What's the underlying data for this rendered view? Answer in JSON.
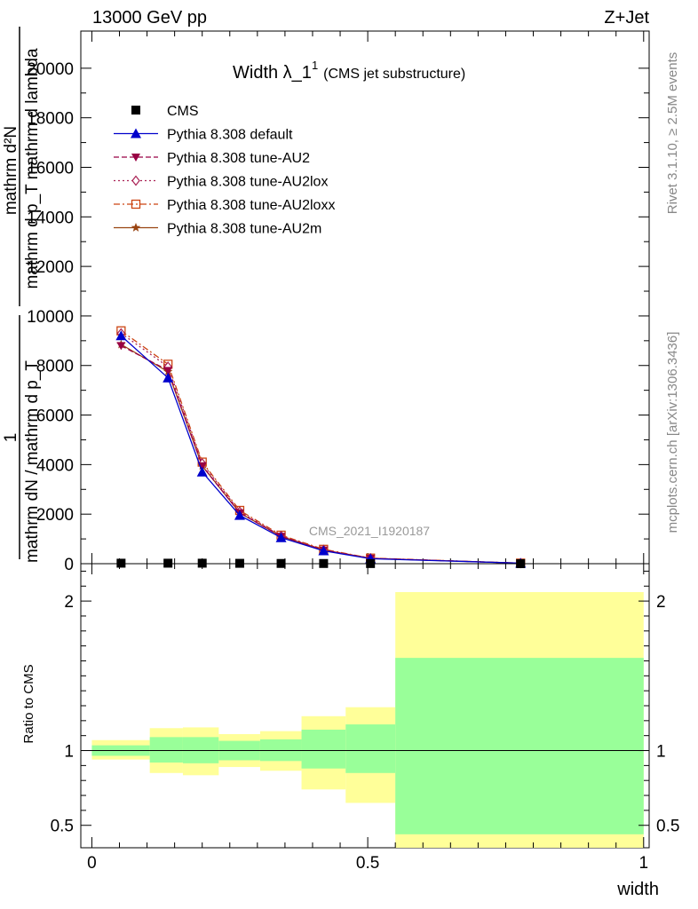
{
  "header": {
    "left": "13000 GeV pp",
    "right": "Z+Jet"
  },
  "title": {
    "main": "Width λ_1",
    "superscript": "1",
    "sub": "(CMS jet substructure)"
  },
  "side_labels": {
    "rivet": "Rivet 3.1.10, ≥ 2.5M events",
    "mcplots": "mcplots.cern.ch [arXiv:1306.3436]"
  },
  "watermark": "CMS_2021_I1920187",
  "ylabel_top": {
    "numerator": "mathrm d²N",
    "denominator": "mathrm d p_T mathrm d lambda",
    "prefix_num": "1",
    "prefix_den": "mathrm dN / mathrm d p_T"
  },
  "ylabel_ratio": "Ratio to CMS",
  "xlabel": "width",
  "colors": {
    "band_outer": "#ffff99",
    "band_inner": "#99ff99",
    "default": "#0000cc",
    "au2": "#990044",
    "au2lox": "#aa2255",
    "au2loxx": "#cc4411",
    "au2m": "#994411"
  },
  "chart_data": [
    {
      "type": "line",
      "panel": "main",
      "xlim": [
        -0.02,
        1.01
      ],
      "ylim": [
        0,
        21500
      ],
      "yticks": [
        0,
        2000,
        4000,
        6000,
        8000,
        10000,
        12000,
        14000,
        16000,
        18000,
        20000
      ],
      "ytick_labels": [
        "0",
        "2000",
        "4000",
        "6000",
        "8000",
        "10000",
        "12000",
        "14000",
        "16000",
        "18000",
        "20000"
      ],
      "x": [
        0.053,
        0.138,
        0.2,
        0.268,
        0.343,
        0.42,
        0.505,
        0.777
      ],
      "series": [
        {
          "name": "CMS",
          "marker": "square",
          "values": [
            20,
            20,
            20,
            15,
            10,
            8,
            5,
            1
          ]
        },
        {
          "name": "Pythia 8.308 default",
          "marker": "triangle-up",
          "dash": "solid",
          "color": "#0000cc",
          "values": [
            9200,
            7500,
            3700,
            1950,
            1050,
            520,
            200,
            20
          ]
        },
        {
          "name": "Pythia 8.308 tune-AU2",
          "marker": "triangle-down",
          "dash": "6,3",
          "color": "#990044",
          "values": [
            8800,
            7800,
            3950,
            2050,
            1100,
            550,
            215,
            22
          ]
        },
        {
          "name": "Pythia 8.308 tune-AU2lox",
          "marker": "diamond",
          "dash": "2,3",
          "color": "#aa2255",
          "values": [
            9300,
            7950,
            4050,
            2100,
            1120,
            560,
            220,
            22
          ]
        },
        {
          "name": "Pythia 8.308 tune-AU2loxx",
          "marker": "open-square",
          "dash": "7,3,2,3",
          "color": "#cc4411",
          "values": [
            9400,
            8050,
            4100,
            2150,
            1150,
            580,
            225,
            23
          ]
        },
        {
          "name": "Pythia 8.308 tune-AU2m",
          "marker": "star",
          "dash": "solid",
          "color": "#994411",
          "values": [
            8850,
            7750,
            3950,
            2050,
            1100,
            550,
            215,
            22
          ]
        }
      ]
    },
    {
      "type": "area",
      "panel": "ratio",
      "xlim": [
        -0.02,
        1.01
      ],
      "ylim": [
        0.35,
        2.25
      ],
      "yticks": [
        0.5,
        1,
        2
      ],
      "ytick_labels": [
        "0.5",
        "1",
        "2"
      ],
      "xticks": [
        0,
        0.5,
        1
      ],
      "xtick_labels": [
        "0",
        "0.5",
        "1"
      ],
      "bins": [
        {
          "lo": 0.0,
          "hi": 0.105,
          "inner": [
            0.965,
            1.035
          ],
          "outer": [
            0.94,
            1.07
          ]
        },
        {
          "lo": 0.105,
          "hi": 0.165,
          "inner": [
            0.92,
            1.09
          ],
          "outer": [
            0.85,
            1.15
          ]
        },
        {
          "lo": 0.165,
          "hi": 0.23,
          "inner": [
            0.915,
            1.09
          ],
          "outer": [
            0.835,
            1.155
          ]
        },
        {
          "lo": 0.23,
          "hi": 0.305,
          "inner": [
            0.935,
            1.065
          ],
          "outer": [
            0.89,
            1.11
          ]
        },
        {
          "lo": 0.305,
          "hi": 0.38,
          "inner": [
            0.93,
            1.075
          ],
          "outer": [
            0.865,
            1.13
          ]
        },
        {
          "lo": 0.38,
          "hi": 0.46,
          "inner": [
            0.88,
            1.14
          ],
          "outer": [
            0.74,
            1.23
          ]
        },
        {
          "lo": 0.46,
          "hi": 0.55,
          "inner": [
            0.85,
            1.175
          ],
          "outer": [
            0.65,
            1.29
          ]
        },
        {
          "lo": 0.55,
          "hi": 1.0,
          "inner": [
            0.44,
            1.62
          ],
          "outer": [
            0.35,
            2.06
          ]
        }
      ]
    }
  ]
}
